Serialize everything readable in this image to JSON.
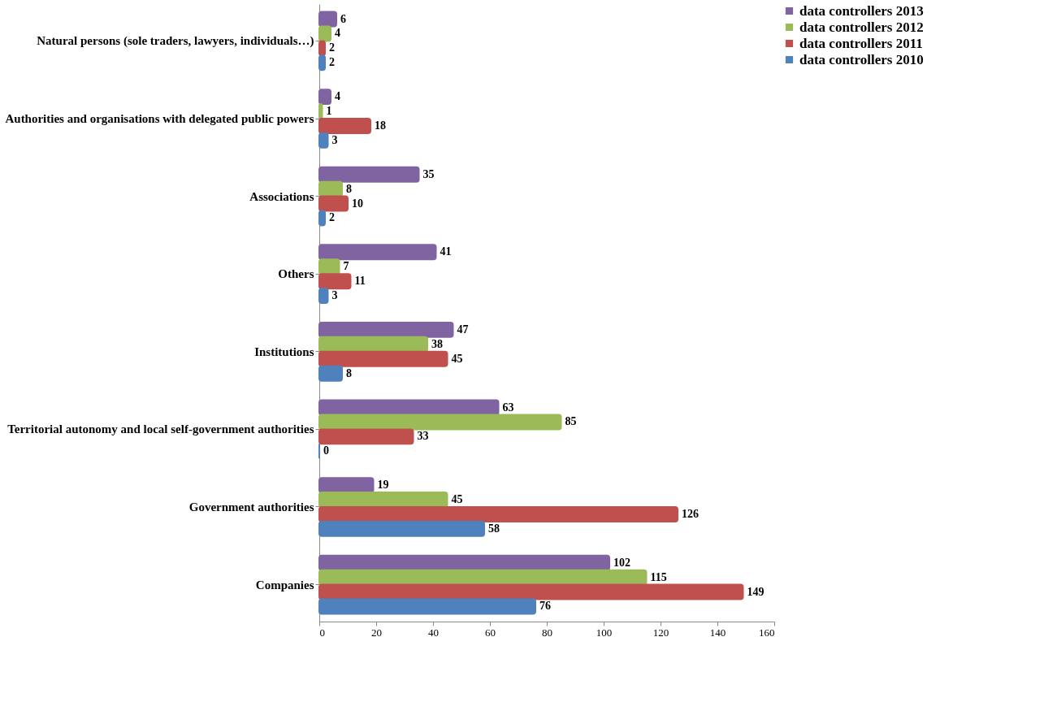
{
  "chart_data": {
    "type": "bar",
    "orientation": "horizontal",
    "categories": [
      "Natural persons (sole traders, lawyers, individuals…)",
      "Authorities and organisations with delegated public powers",
      "Associations",
      "Others",
      "Institutions",
      "Territorial autonomy and local self-government authorities",
      "Government authorities",
      "Companies"
    ],
    "series": [
      {
        "name": "data controllers 2013",
        "color": "#8064a2",
        "values": [
          6,
          4,
          35,
          41,
          47,
          63,
          19,
          102
        ]
      },
      {
        "name": "data controllers 2012",
        "color": "#9bbb59",
        "values": [
          4,
          1,
          8,
          7,
          38,
          85,
          45,
          115
        ]
      },
      {
        "name": "data controllers 2011",
        "color": "#c0504d",
        "values": [
          2,
          18,
          10,
          11,
          45,
          33,
          126,
          149
        ]
      },
      {
        "name": "data controllers 2010",
        "color": "#4f81bd",
        "values": [
          2,
          3,
          2,
          3,
          8,
          0,
          58,
          76
        ]
      }
    ],
    "xlim": [
      0,
      160
    ],
    "xticks": [
      0,
      20,
      40,
      60,
      80,
      100,
      120,
      140,
      160
    ],
    "data_labels": true,
    "grid": false,
    "legend": "right"
  }
}
